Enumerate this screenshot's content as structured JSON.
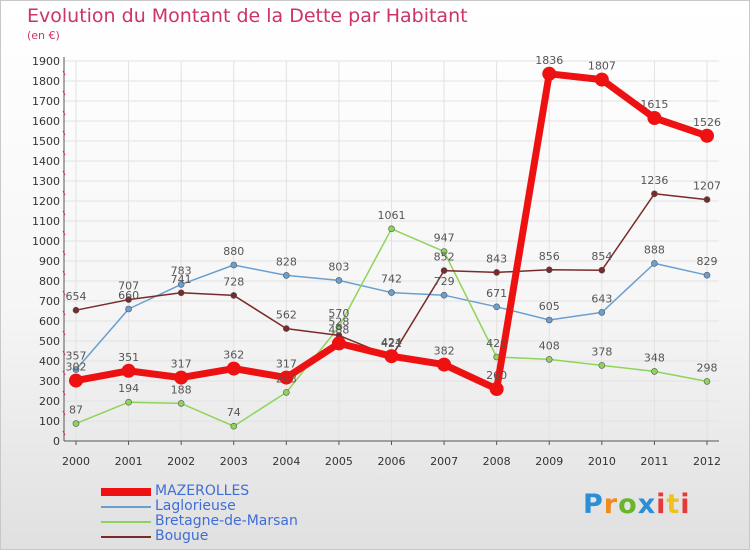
{
  "chart_data": {
    "type": "line",
    "title": "Evolution du Montant de la Dette par Habitant",
    "subtitle": "(en €)",
    "x": [
      "2000",
      "2001",
      "2002",
      "2003",
      "2004",
      "2005",
      "2006",
      "2007",
      "2008",
      "2009",
      "2010",
      "2011",
      "2012"
    ],
    "ylim": [
      0,
      1900
    ],
    "yticks": [
      0,
      100,
      200,
      300,
      400,
      500,
      600,
      700,
      800,
      900,
      1000,
      1100,
      1200,
      1300,
      1400,
      1500,
      1600,
      1700,
      1800,
      1900
    ],
    "grid": true,
    "legend_position": "bottom-left",
    "series": [
      {
        "name": "MAZEROLLES",
        "color": "#ee1111",
        "width": 7,
        "marker": 7,
        "values": [
          302,
          351,
          317,
          362,
          317,
          488,
          424,
          382,
          260,
          1836,
          1807,
          1615,
          1526
        ]
      },
      {
        "name": "Laglorieuse",
        "color": "#6aa0cf",
        "width": 1.5,
        "marker": 3,
        "values": [
          357,
          660,
          783,
          880,
          828,
          803,
          742,
          729,
          671,
          605,
          643,
          888,
          829
        ]
      },
      {
        "name": "Bretagne-de-Marsan",
        "color": "#8fd45a",
        "width": 1.5,
        "marker": 3,
        "values": [
          87,
          194,
          188,
          74,
          243,
          570,
          1061,
          947,
          420,
          408,
          378,
          348,
          298
        ]
      },
      {
        "name": "Bougue",
        "color": "#7a2a2a",
        "width": 1.5,
        "marker": 3,
        "values": [
          654,
          707,
          741,
          728,
          562,
          528,
          421,
          852,
          843,
          856,
          854,
          1236,
          1207
        ]
      }
    ]
  },
  "logo": {
    "p1": "P",
    "p2": "r",
    "p3": "o",
    "p4": "x",
    "p5": "i",
    "p6": "t",
    "p7": "i"
  }
}
